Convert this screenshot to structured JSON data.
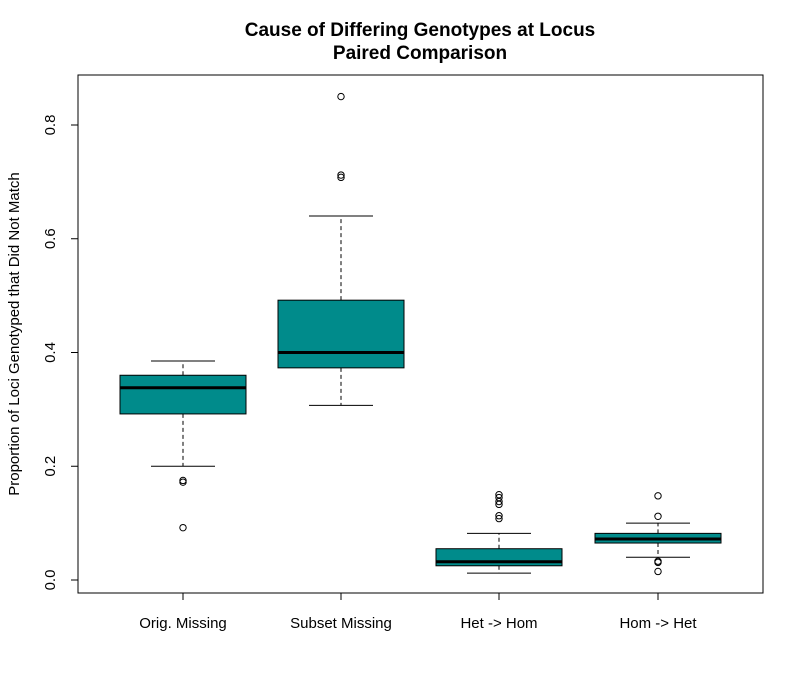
{
  "chart_data": {
    "type": "box",
    "title": [
      "Cause of Differing Genotypes at Locus",
      "Paired Comparison"
    ],
    "xlabel": "",
    "ylabel": "Proportion of Loci Genotyped that Did Not Match",
    "ylim": [
      -0.025,
      0.87
    ],
    "yticks": [
      0.0,
      0.2,
      0.4,
      0.6,
      0.8
    ],
    "ytick_labels": [
      "0.0",
      "0.2",
      "0.4",
      "0.6",
      "0.8"
    ],
    "box_fill": "#008b8b",
    "categories": [
      "Orig. Missing",
      "Subset Missing",
      "Het -> Hom",
      "Hom -> Het"
    ],
    "boxes": [
      {
        "whisker_low": 0.2,
        "q1": 0.292,
        "median": 0.338,
        "q3": 0.36,
        "whisker_high": 0.385,
        "outliers": [
          0.175,
          0.172,
          0.092
        ]
      },
      {
        "whisker_low": 0.307,
        "q1": 0.373,
        "median": 0.4,
        "q3": 0.492,
        "whisker_high": 0.64,
        "outliers": [
          0.85,
          0.712,
          0.708
        ]
      },
      {
        "whisker_low": 0.012,
        "q1": 0.025,
        "median": 0.032,
        "q3": 0.055,
        "whisker_high": 0.082,
        "outliers": [
          0.15,
          0.145,
          0.138,
          0.133,
          0.113,
          0.108
        ]
      },
      {
        "whisker_low": 0.04,
        "q1": 0.065,
        "median": 0.072,
        "q3": 0.082,
        "whisker_high": 0.1,
        "outliers": [
          0.148,
          0.112,
          0.033,
          0.031,
          0.015
        ]
      }
    ]
  }
}
